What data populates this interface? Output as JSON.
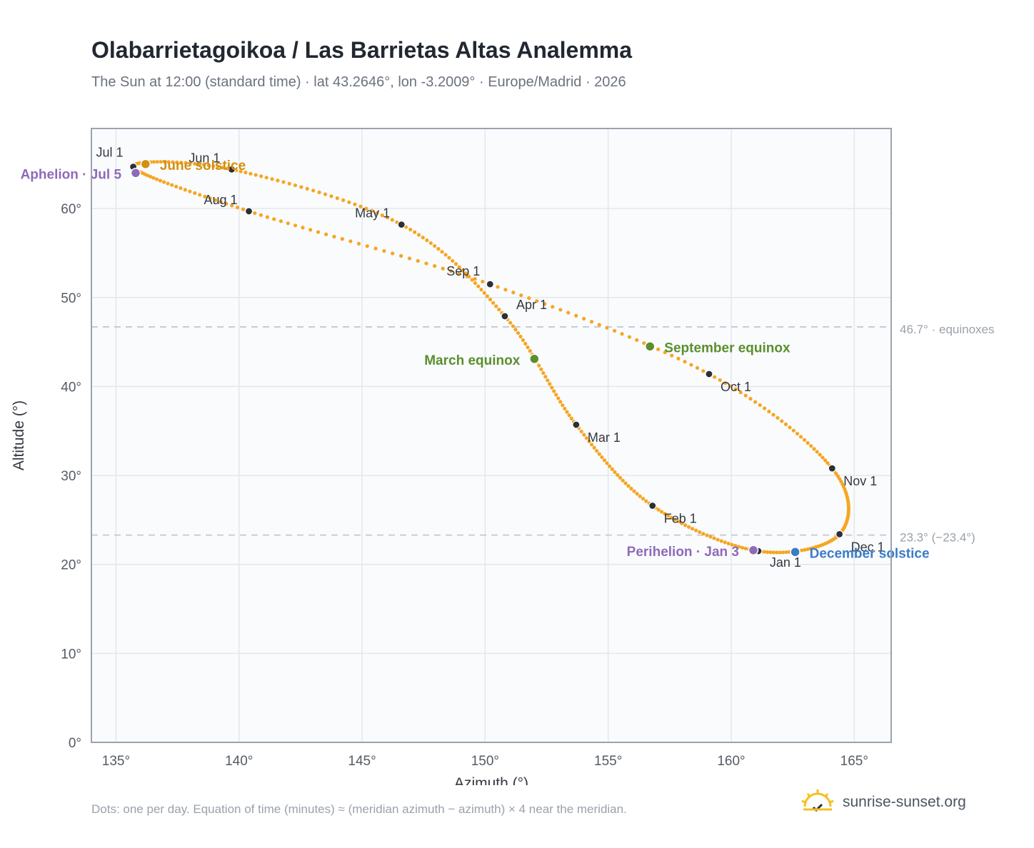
{
  "header": {
    "title": "Olabarrietagoikoa / Las Barrietas Altas Analemma",
    "subtitle": "The Sun at 12:00 (standard time) · lat 43.2646°, lon -3.2009° · Europe/Madrid · 2026"
  },
  "footer": {
    "note": "Dots: one per day. Equation of time (minutes) ≈ (meridian azimuth − azimuth) × 4 near the meridian.",
    "brand": "sunrise-sunset.org",
    "brand_icon": "sun-logo-icon"
  },
  "colors": {
    "curve": "#f5a623",
    "month_dot": "#2b2f36",
    "solstice_june": "#d4900f",
    "solstice_december": "#3a7cc6",
    "equinox": "#5a8f2e",
    "apsis": "#8e6bb8",
    "reference_line": "#c2c9d4",
    "plot_bg": "#fafbfc"
  },
  "chart_data": {
    "type": "scatter",
    "title": "Olabarrietagoikoa / Las Barrietas Altas Analemma",
    "xlabel": "Azimuth (°)",
    "ylabel": "Altitude (°)",
    "xlim": [
      134,
      166.5
    ],
    "ylim": [
      0,
      69
    ],
    "x_ticks": [
      135,
      140,
      145,
      150,
      155,
      160,
      165
    ],
    "x_tick_labels": [
      "135°",
      "140°",
      "145°",
      "150°",
      "155°",
      "160°",
      "165°"
    ],
    "y_ticks": [
      0,
      10,
      20,
      30,
      40,
      50,
      60
    ],
    "y_tick_labels": [
      "0°",
      "10°",
      "20°",
      "30°",
      "40°",
      "50°",
      "60°"
    ],
    "grid": true,
    "reference_lines": [
      {
        "y": 46.7,
        "label": "46.7° · equinoxes"
      },
      {
        "y": 23.3,
        "label": "23.3° (−23.4°)"
      }
    ],
    "month_markers": [
      {
        "label": "Jan 1",
        "x": 161.1,
        "y": 21.5
      },
      {
        "label": "Feb 1",
        "x": 156.8,
        "y": 26.6
      },
      {
        "label": "Mar 1",
        "x": 153.7,
        "y": 35.7
      },
      {
        "label": "Apr 1",
        "x": 150.8,
        "y": 47.9
      },
      {
        "label": "May 1",
        "x": 146.6,
        "y": 58.2
      },
      {
        "label": "Jun 1",
        "x": 139.7,
        "y": 64.4
      },
      {
        "label": "Jul 1",
        "x": 135.7,
        "y": 64.7
      },
      {
        "label": "Aug 1",
        "x": 140.4,
        "y": 59.7
      },
      {
        "label": "Sep 1",
        "x": 150.2,
        "y": 51.5
      },
      {
        "label": "Oct 1",
        "x": 159.1,
        "y": 41.4
      },
      {
        "label": "Nov 1",
        "x": 164.1,
        "y": 30.8
      },
      {
        "label": "Dec 1",
        "x": 164.4,
        "y": 23.4
      }
    ],
    "events": [
      {
        "label": "June solstice",
        "x": 136.2,
        "y": 65.0,
        "kind": "solstice_june"
      },
      {
        "label": "December solstice",
        "x": 162.6,
        "y": 21.4,
        "kind": "solstice_december"
      },
      {
        "label": "March equinox",
        "x": 152.0,
        "y": 43.1,
        "kind": "equinox"
      },
      {
        "label": "September equinox",
        "x": 156.7,
        "y": 44.5,
        "kind": "equinox"
      },
      {
        "label": "Aphelion · Jul 5",
        "x": 135.8,
        "y": 64.0,
        "kind": "apsis"
      },
      {
        "label": "Perihelion · Jan 3",
        "x": 160.9,
        "y": 21.6,
        "kind": "apsis"
      }
    ]
  }
}
